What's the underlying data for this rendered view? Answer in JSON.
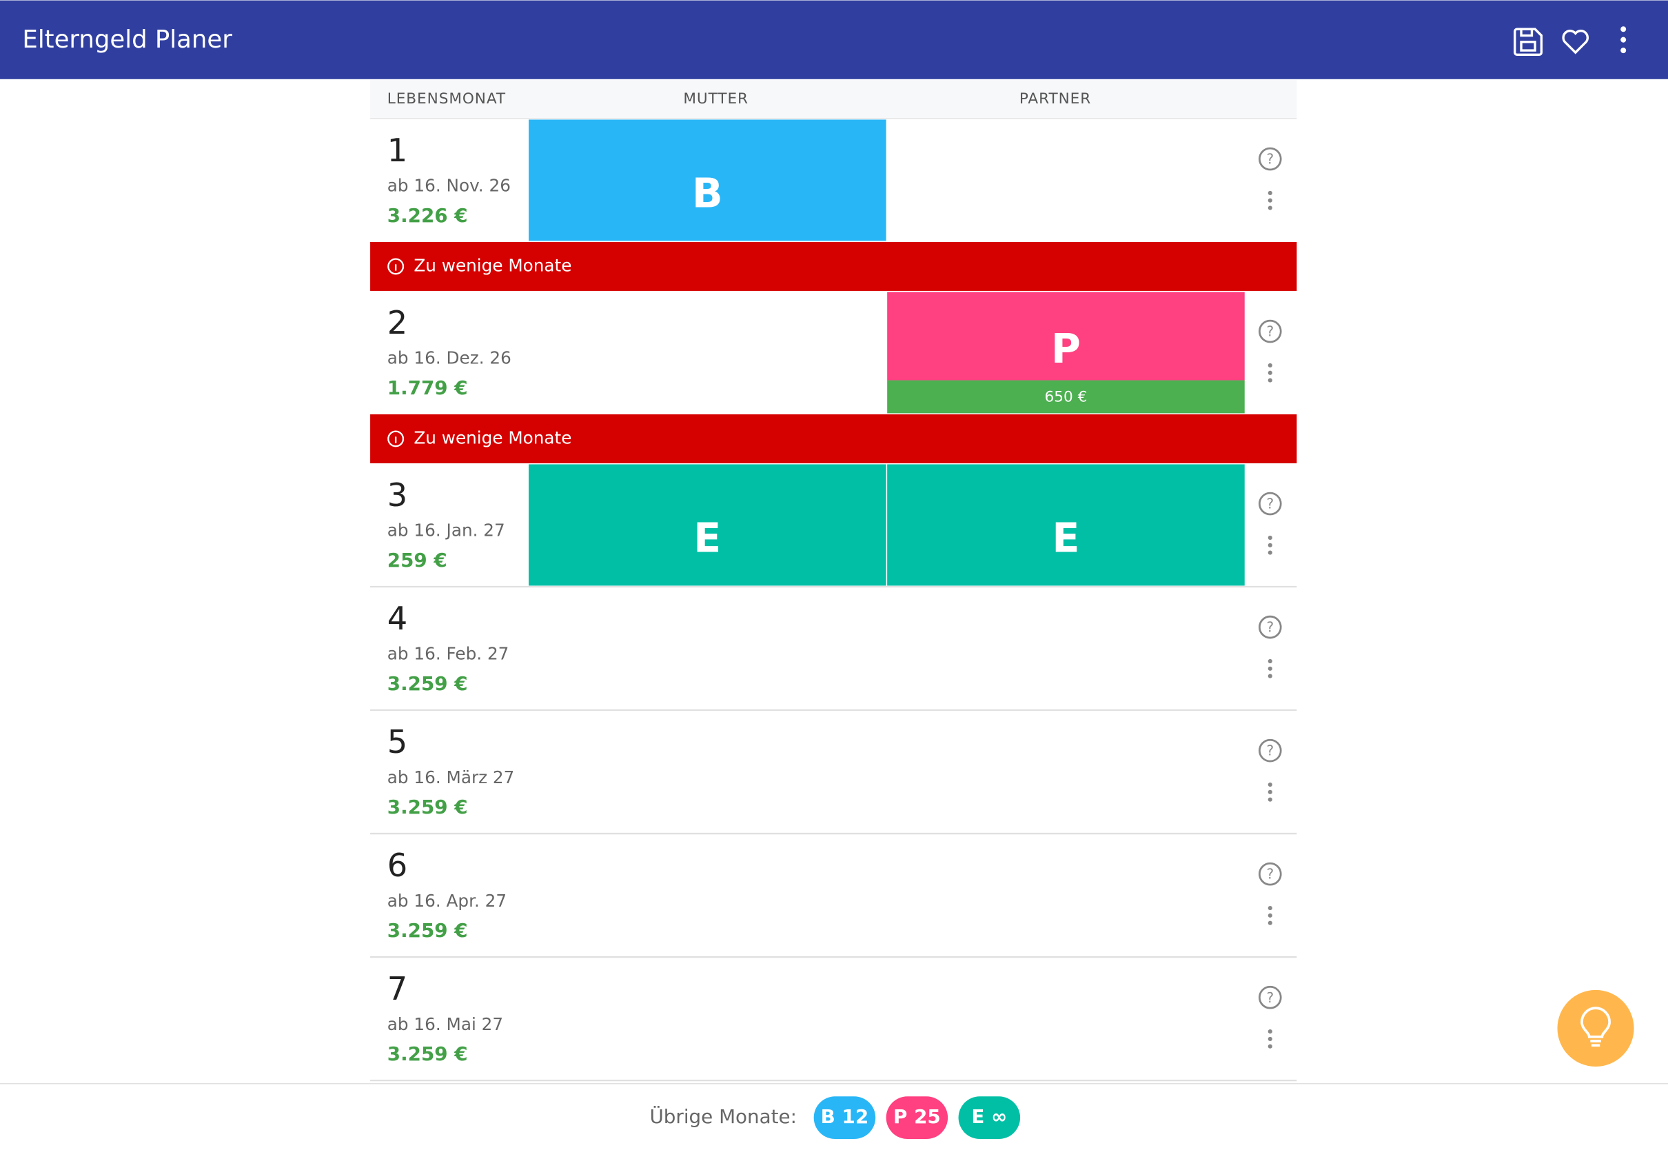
{
  "header": {
    "title": "Elterngeld Planer"
  },
  "table": {
    "columns": [
      "LEBENSMONAT",
      "MUTTER",
      "PARTNER"
    ],
    "rows": [
      {
        "month": "1",
        "date": "ab 16. Nov. 26",
        "amount": "3.226 €",
        "mutter": "B",
        "warning": "Zu wenige Monate"
      },
      {
        "month": "2",
        "date": "ab 16. Dez. 26",
        "amount": "1.779 €",
        "partner": "P",
        "partner_amount": "650 €",
        "warning": "Zu wenige Monate"
      },
      {
        "month": "3",
        "date": "ab 16. Jan. 27",
        "amount": "259 €",
        "mutter": "E",
        "partner": "E"
      },
      {
        "month": "4",
        "date": "ab 16. Feb. 27",
        "amount": "3.259 €"
      },
      {
        "month": "5",
        "date": "ab 16. März 27",
        "amount": "3.259 €"
      },
      {
        "month": "6",
        "date": "ab 16. Apr. 27",
        "amount": "3.259 €"
      },
      {
        "month": "7",
        "date": "ab 16. Mai 27",
        "amount": "3.259 €"
      }
    ]
  },
  "footer": {
    "label": "Übrige Monate:",
    "chips": [
      {
        "type": "B",
        "label": "B 12"
      },
      {
        "type": "P",
        "label": "P 25"
      },
      {
        "type": "E",
        "label": "E ∞"
      }
    ]
  }
}
